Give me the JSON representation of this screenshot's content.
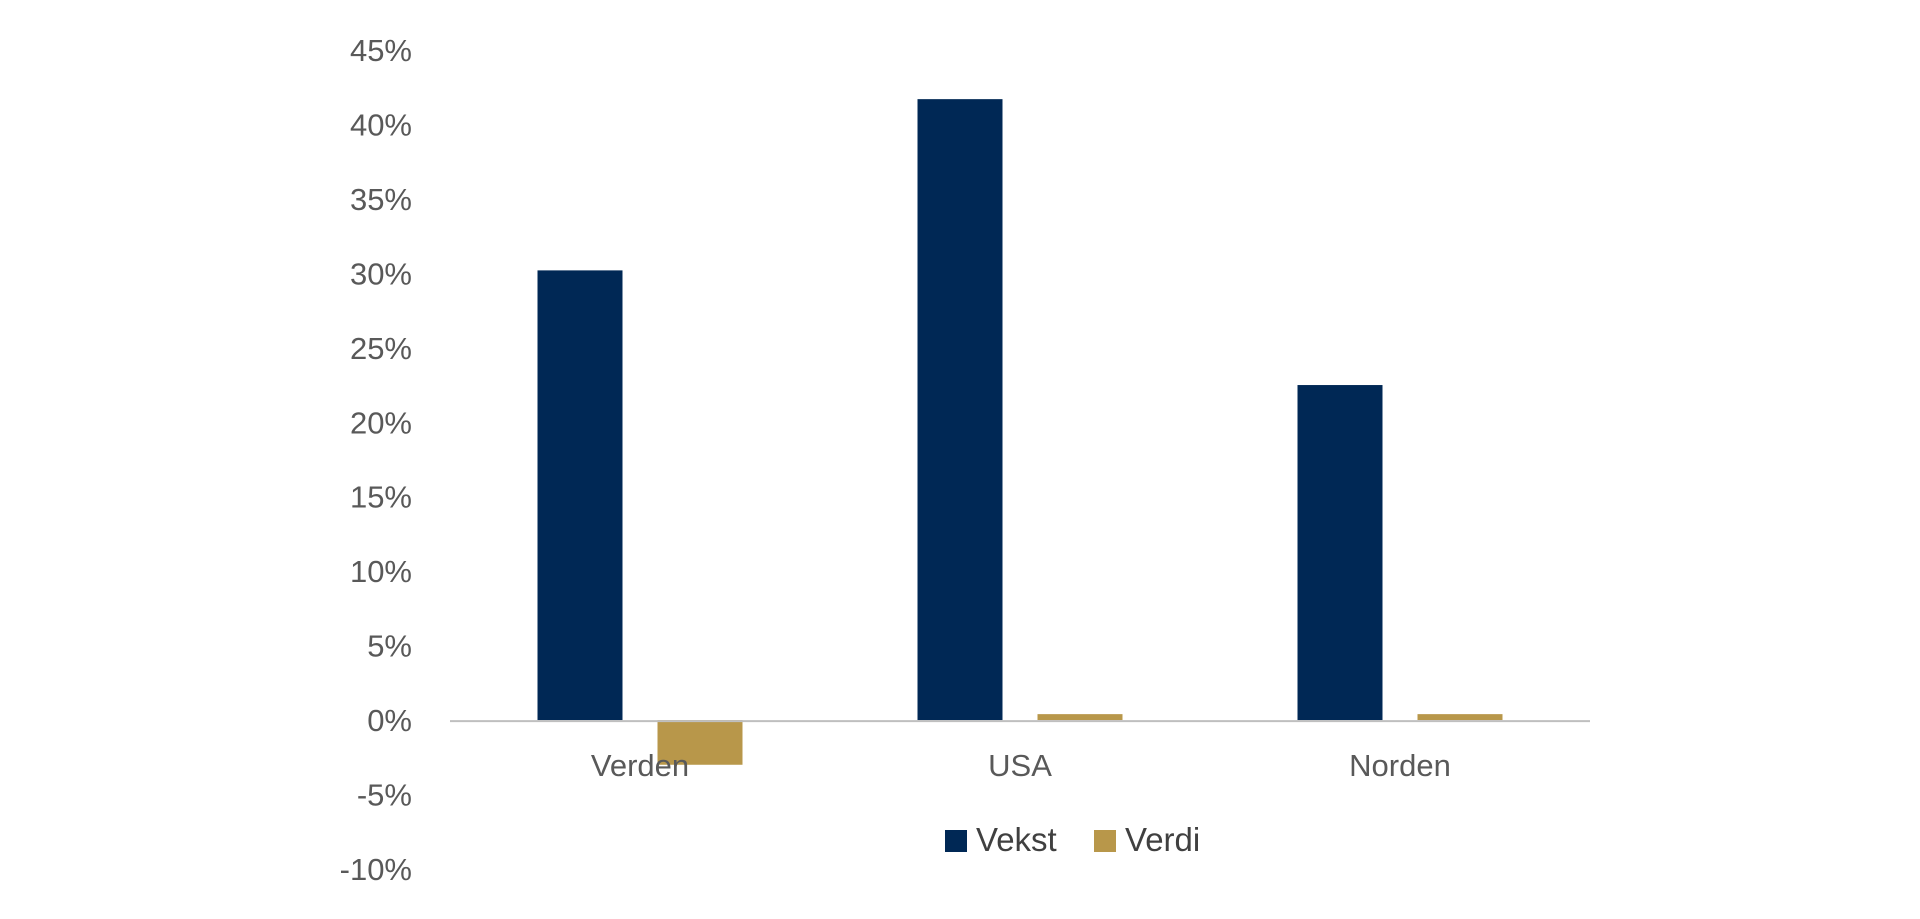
{
  "chart_data": {
    "type": "bar",
    "categories": [
      "Verden",
      "USA",
      "Norden"
    ],
    "series": [
      {
        "name": "Vekst",
        "values": [
          30.2,
          41.7,
          22.5
        ],
        "color": "#002855"
      },
      {
        "name": "Verdi",
        "values": [
          -3.0,
          0.4,
          0.4
        ],
        "color": "#B8974A"
      }
    ],
    "ylim": [
      -10,
      45
    ],
    "yticks": [
      -10,
      -5,
      0,
      5,
      10,
      15,
      20,
      25,
      30,
      35,
      40,
      45
    ],
    "ytick_labels": [
      "-10%",
      "-5%",
      "0%",
      "5%",
      "10%",
      "15%",
      "20%",
      "25%",
      "30%",
      "35%",
      "40%",
      "45%"
    ],
    "title": "",
    "xlabel": "",
    "ylabel": "",
    "grid": false,
    "legend_position": "bottom",
    "axis_color": "#BFBFBF"
  }
}
